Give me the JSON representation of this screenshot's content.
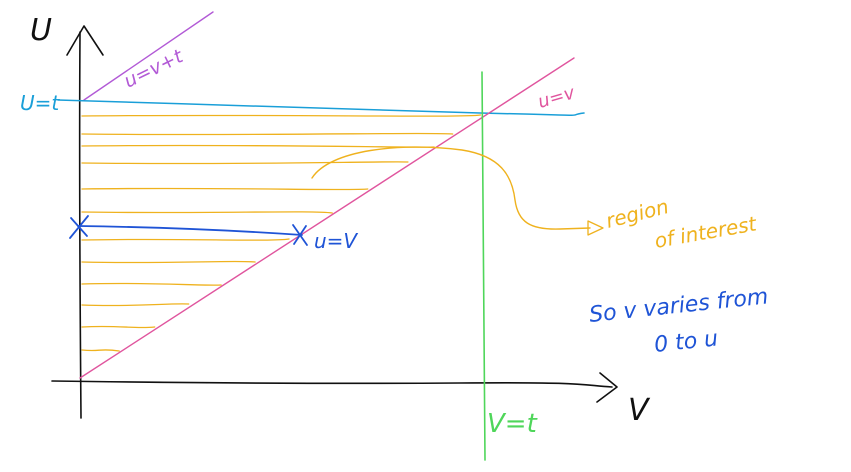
{
  "labels": {
    "u_axis": "U",
    "v_axis": "V",
    "u_eq_t": "U=t",
    "u_eq_v_plus_t": "u=v+t",
    "u_eq_v": "u=v",
    "v_eq_t": "V=t",
    "segment_end": "u=V",
    "region_line1": "region",
    "region_line2": "of interest",
    "note_line1": "So  v varies from",
    "note_line2": "0 to u"
  },
  "colors": {
    "axes": "#111111",
    "u_eq_v_plus_t": "#b25ad6",
    "u_eq_t": "#1a9fd8",
    "u_eq_v": "#e0559e",
    "v_eq_t": "#4fd65a",
    "hatch": "#efb21e",
    "segment": "#1f54d6",
    "note": "#1f54d6",
    "region_label": "#efb21e"
  },
  "icons": {
    "segment_start_marker": "cross-mark-icon",
    "segment_end_marker": "cross-mark-icon",
    "region_pointer": "arrow-right-icon"
  }
}
